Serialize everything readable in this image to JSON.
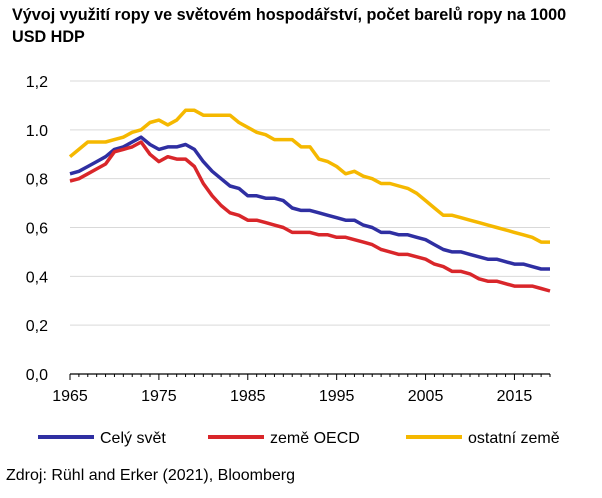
{
  "title": "Vývoj využití ropy ve světovém hospodářství, počet barelů ropy na 1000 USD HDP",
  "source": "Zdroj: Rühl and Erker (2021), Bloomberg",
  "chart_data": {
    "type": "line",
    "title": "Vývoj využití ropy ve světovém hospodářství, počet barelů ropy na 1000 USD HDP",
    "xlabel": "",
    "ylabel": "",
    "xlim": [
      1965,
      2019
    ],
    "ylim": [
      0,
      1.2
    ],
    "x_ticks": [
      "1965",
      "1975",
      "1985",
      "1995",
      "2005",
      "2015"
    ],
    "y_ticks": [
      "0,0",
      "0,2",
      "0,4",
      "0,6",
      "0,8",
      "1.0",
      "1,2"
    ],
    "y_tick_values": [
      0,
      0.2,
      0.4,
      0.6,
      0.8,
      1.0,
      1.2
    ],
    "grid": "horizontal",
    "legend_position": "bottom",
    "x": [
      1965,
      1966,
      1967,
      1968,
      1969,
      1970,
      1971,
      1972,
      1973,
      1974,
      1975,
      1976,
      1977,
      1978,
      1979,
      1980,
      1981,
      1982,
      1983,
      1984,
      1985,
      1986,
      1987,
      1988,
      1989,
      1990,
      1991,
      1992,
      1993,
      1994,
      1995,
      1996,
      1997,
      1998,
      1999,
      2000,
      2001,
      2002,
      2003,
      2004,
      2005,
      2006,
      2007,
      2008,
      2009,
      2010,
      2011,
      2012,
      2013,
      2014,
      2015,
      2016,
      2017,
      2018,
      2019
    ],
    "series": [
      {
        "name": "Celý svět",
        "color": "#2f2fa2",
        "values": [
          0.82,
          0.83,
          0.85,
          0.87,
          0.89,
          0.92,
          0.93,
          0.95,
          0.97,
          0.94,
          0.92,
          0.93,
          0.93,
          0.94,
          0.92,
          0.87,
          0.83,
          0.8,
          0.77,
          0.76,
          0.73,
          0.73,
          0.72,
          0.72,
          0.71,
          0.68,
          0.67,
          0.67,
          0.66,
          0.65,
          0.64,
          0.63,
          0.63,
          0.61,
          0.6,
          0.58,
          0.58,
          0.57,
          0.57,
          0.56,
          0.55,
          0.53,
          0.51,
          0.5,
          0.5,
          0.49,
          0.48,
          0.47,
          0.47,
          0.46,
          0.45,
          0.45,
          0.44,
          0.43,
          0.43
        ]
      },
      {
        "name": "země OECD",
        "color": "#d9262a",
        "values": [
          0.79,
          0.8,
          0.82,
          0.84,
          0.86,
          0.91,
          0.92,
          0.93,
          0.95,
          0.9,
          0.87,
          0.89,
          0.88,
          0.88,
          0.85,
          0.78,
          0.73,
          0.69,
          0.66,
          0.65,
          0.63,
          0.63,
          0.62,
          0.61,
          0.6,
          0.58,
          0.58,
          0.58,
          0.57,
          0.57,
          0.56,
          0.56,
          0.55,
          0.54,
          0.53,
          0.51,
          0.5,
          0.49,
          0.49,
          0.48,
          0.47,
          0.45,
          0.44,
          0.42,
          0.42,
          0.41,
          0.39,
          0.38,
          0.38,
          0.37,
          0.36,
          0.36,
          0.36,
          0.35,
          0.34
        ]
      },
      {
        "name": "ostatní země",
        "color": "#f5b800",
        "values": [
          0.89,
          0.92,
          0.95,
          0.95,
          0.95,
          0.96,
          0.97,
          0.99,
          1.0,
          1.03,
          1.04,
          1.02,
          1.04,
          1.08,
          1.08,
          1.06,
          1.06,
          1.06,
          1.06,
          1.03,
          1.01,
          0.99,
          0.98,
          0.96,
          0.96,
          0.96,
          0.93,
          0.93,
          0.88,
          0.87,
          0.85,
          0.82,
          0.83,
          0.81,
          0.8,
          0.78,
          0.78,
          0.77,
          0.76,
          0.74,
          0.71,
          0.68,
          0.65,
          0.65,
          0.64,
          0.63,
          0.62,
          0.61,
          0.6,
          0.59,
          0.58,
          0.57,
          0.56,
          0.54,
          0.54
        ]
      }
    ]
  }
}
